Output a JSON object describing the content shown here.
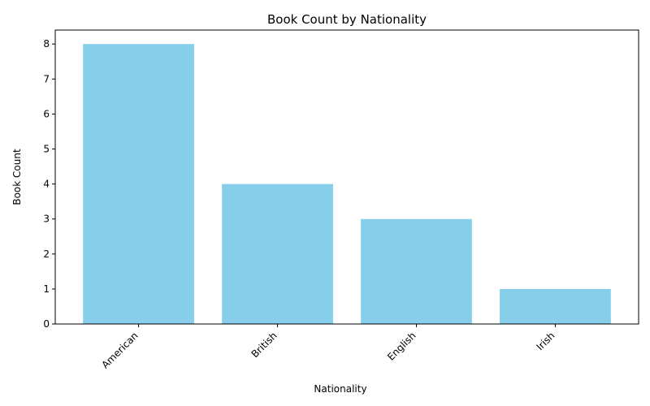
{
  "chart_data": {
    "type": "bar",
    "title": "Book Count by Nationality",
    "xlabel": "Nationality",
    "ylabel": "Book Count",
    "categories": [
      "American",
      "British",
      "English",
      "Irish"
    ],
    "values": [
      8,
      4,
      3,
      1
    ],
    "ylim": [
      0,
      8.4
    ],
    "yticks": [
      "0",
      "1",
      "2",
      "3",
      "4",
      "5",
      "6",
      "7",
      "8"
    ],
    "bar_color": "#87ceeb",
    "grid": false,
    "legend": "none"
  }
}
